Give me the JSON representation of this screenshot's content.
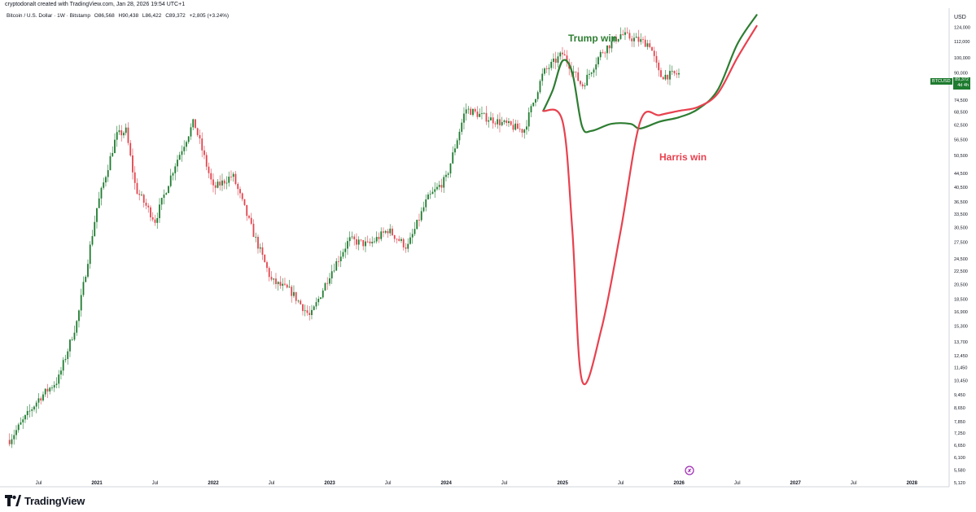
{
  "header": {
    "credit": "cryptodonalt created with TradingView.com, Jan 28, 2026 19:54 UTC+1",
    "symbol_title": "Bitcoin / U.S. Dollar · 1W · Bitstamp",
    "ohlc": {
      "open": "O86,568",
      "high": "H90,438",
      "low": "L86,422",
      "close": "C89,372",
      "change": "+2,805 (+3.24%)"
    }
  },
  "price_axis": {
    "currency": "USD",
    "ticks": [
      "124,000",
      "112,000",
      "100,000",
      "90,000",
      "82,500",
      "74,500",
      "68,500",
      "62,500",
      "56,500",
      "50,500",
      "44,500",
      "40,500",
      "36,500",
      "33,500",
      "30,500",
      "27,500",
      "24,500",
      "22,500",
      "20,500",
      "18,500",
      "16,900",
      "15,300",
      "13,700",
      "12,450",
      "11,450",
      "10,450",
      "9,450",
      "8,650",
      "7,850",
      "7,250",
      "6,650",
      "6,100",
      "5,580",
      "5,120"
    ],
    "badge_symbol": "BTCUSD",
    "badge_price": "89,372",
    "badge_countdown": "4d 4h"
  },
  "time_axis": {
    "ticks": [
      "Jul",
      "2021",
      "Jul",
      "2022",
      "Jul",
      "2023",
      "Jul",
      "2024",
      "Jul",
      "2025",
      "Jul",
      "2026",
      "Jul",
      "2027",
      "Jul",
      "2028"
    ]
  },
  "colors": {
    "up": "#1e7b2f",
    "down": "#e0454e",
    "trump_line": "#2e7d32",
    "harris_line": "#e8414f",
    "axis_text": "#131722"
  },
  "annotations": {
    "trump": "Trump win",
    "harris": "Harris win"
  },
  "brand": {
    "name": "TradingView",
    "icon": "tradingview-logo-icon"
  },
  "chart_data": {
    "type": "candlestick",
    "scale": "log",
    "symbol": "BTCUSD",
    "interval": "1W",
    "ylim": [
      5000,
      140000
    ],
    "x_range": [
      "2020-04",
      "2028-04"
    ],
    "path_points": [
      [
        "2020-04",
        6900
      ],
      [
        "2020-07",
        9200
      ],
      [
        "2020-09",
        10500
      ],
      [
        "2020-11",
        16000
      ],
      [
        "2021-01",
        35000
      ],
      [
        "2021-03",
        58000
      ],
      [
        "2021-04",
        60000
      ],
      [
        "2021-05",
        40000
      ],
      [
        "2021-07",
        32000
      ],
      [
        "2021-09",
        47000
      ],
      [
        "2021-11",
        64000
      ],
      [
        "2022-01",
        40000
      ],
      [
        "2022-03",
        44000
      ],
      [
        "2022-05",
        30000
      ],
      [
        "2022-07",
        21000
      ],
      [
        "2022-09",
        19500
      ],
      [
        "2022-11",
        16300
      ],
      [
        "2023-01",
        22000
      ],
      [
        "2023-03",
        28000
      ],
      [
        "2023-05",
        27000
      ],
      [
        "2023-07",
        30000
      ],
      [
        "2023-09",
        26500
      ],
      [
        "2023-11",
        37000
      ],
      [
        "2024-01",
        43000
      ],
      [
        "2024-03",
        70000
      ],
      [
        "2024-05",
        66000
      ],
      [
        "2024-07",
        63000
      ],
      [
        "2024-09",
        60000
      ],
      [
        "2024-11",
        90000
      ],
      [
        "2025-01",
        103000
      ],
      [
        "2025-03",
        82000
      ],
      [
        "2025-05",
        104000
      ],
      [
        "2025-07",
        118000
      ],
      [
        "2025-08",
        115000
      ],
      [
        "2025-10",
        110000
      ],
      [
        "2025-11",
        88000
      ],
      [
        "2026-01",
        89372
      ]
    ],
    "scenarios": [
      {
        "name": "Trump win",
        "points": [
          [
            "2024-11",
            69000
          ],
          [
            "2024-12",
            80000
          ],
          [
            "2025-01",
            98000
          ],
          [
            "2025-02",
            90000
          ],
          [
            "2025-03",
            62000
          ],
          [
            "2025-04",
            60000
          ],
          [
            "2025-06",
            63000
          ],
          [
            "2025-08",
            63000
          ],
          [
            "2025-09",
            61000
          ],
          [
            "2025-11",
            64000
          ],
          [
            "2026-01",
            66000
          ],
          [
            "2026-03",
            70000
          ],
          [
            "2026-05",
            80000
          ],
          [
            "2026-07",
            110000
          ],
          [
            "2026-09",
            135000
          ]
        ]
      },
      {
        "name": "Harris win",
        "points": [
          [
            "2024-11",
            69000
          ],
          [
            "2025-01",
            64000
          ],
          [
            "2025-02",
            30000
          ],
          [
            "2025-03",
            10450
          ],
          [
            "2025-05",
            15000
          ],
          [
            "2025-07",
            30000
          ],
          [
            "2025-09",
            64000
          ],
          [
            "2025-11",
            67000
          ],
          [
            "2026-01",
            69000
          ],
          [
            "2026-03",
            71000
          ],
          [
            "2026-05",
            78000
          ],
          [
            "2026-07",
            100000
          ],
          [
            "2026-09",
            125000
          ]
        ]
      }
    ]
  }
}
